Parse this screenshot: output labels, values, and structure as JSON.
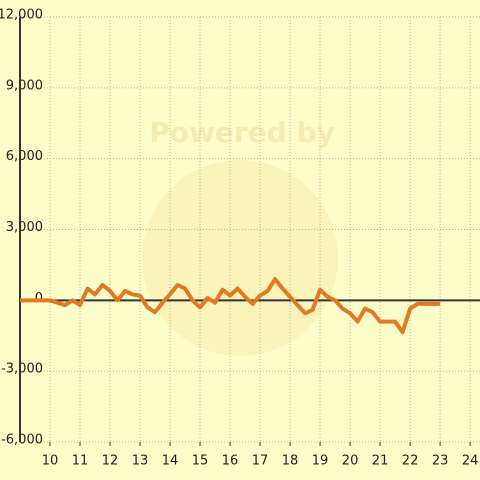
{
  "chart_data": {
    "type": "line",
    "watermark": "Powered by",
    "x": [
      9,
      10,
      10.25,
      10.5,
      10.75,
      11,
      11.25,
      11.5,
      11.75,
      12,
      12.25,
      12.5,
      12.75,
      13,
      13.25,
      13.5,
      13.75,
      14,
      14.25,
      14.5,
      14.75,
      15,
      15.25,
      15.5,
      15.75,
      16,
      16.25,
      16.5,
      16.75,
      17,
      17.25,
      17.5,
      17.75,
      18,
      18.25,
      18.5,
      18.75,
      19,
      19.25,
      19.5,
      19.75,
      20,
      20.25,
      20.5,
      20.75,
      21,
      21.25,
      21.5,
      21.75,
      22,
      22.25,
      22.5,
      22.75,
      23
    ],
    "series": [
      {
        "color": "#e07b24",
        "values": [
          0,
          0,
          -100,
          -200,
          0,
          -200,
          500,
          250,
          650,
          400,
          0,
          400,
          250,
          200,
          -300,
          -500,
          -100,
          250,
          650,
          500,
          0,
          -300,
          100,
          -100,
          450,
          200,
          500,
          150,
          -150,
          200,
          400,
          900,
          500,
          150,
          -200,
          -550,
          -400,
          450,
          150,
          0,
          -350,
          -550,
          -900,
          -350,
          -500,
          -900,
          -900,
          -900,
          -1350,
          -350,
          -150,
          -150,
          -150,
          -150
        ]
      }
    ],
    "xlim": [
      9,
      24.33
    ],
    "xticks": [
      10,
      11,
      12,
      13,
      14,
      15,
      16,
      17,
      18,
      19,
      20,
      21,
      22,
      23,
      24
    ],
    "ylim": [
      -6000,
      12000
    ],
    "yticks": [
      {
        "value": -6000,
        "label": "-6,000"
      },
      {
        "value": -3000,
        "label": "-3,000"
      },
      0,
      {
        "value": 3000,
        "label": "3,000"
      },
      {
        "value": 6000,
        "label": "6,000"
      },
      {
        "value": 9000,
        "label": "9,000"
      },
      {
        "value": 12000,
        "label": "12,000"
      }
    ],
    "grid": true
  }
}
